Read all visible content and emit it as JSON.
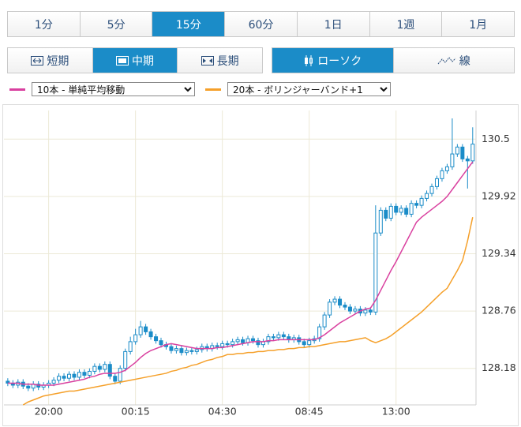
{
  "toolbar": {
    "timeframes": [
      {
        "label": "1分",
        "active": false
      },
      {
        "label": "5分",
        "active": false
      },
      {
        "label": "15分",
        "active": true
      },
      {
        "label": "60分",
        "active": false
      },
      {
        "label": "1日",
        "active": false
      },
      {
        "label": "1週",
        "active": false
      },
      {
        "label": "1月",
        "active": false
      }
    ],
    "ranges": [
      {
        "label": "短期",
        "active": false
      },
      {
        "label": "中期",
        "active": true
      },
      {
        "label": "長期",
        "active": false
      }
    ],
    "styles": [
      {
        "label": "ローソク",
        "active": true
      },
      {
        "label": "線",
        "active": false
      }
    ]
  },
  "chart_data": {
    "type": "candlestick",
    "up_color": "#ffffff",
    "down_color": "#1b8cc8",
    "edge_color": "#1b8cc8",
    "grid": true,
    "ylim": [
      127.81,
      130.79
    ],
    "yticks": [
      128.18,
      128.76,
      129.34,
      129.92,
      130.5
    ],
    "categories": [
      null,
      null,
      null,
      null,
      null,
      null,
      null,
      null,
      "20:00",
      null,
      null,
      null,
      null,
      null,
      null,
      null,
      null,
      null,
      null,
      null,
      null,
      null,
      null,
      null,
      null,
      "00:15",
      null,
      null,
      null,
      null,
      null,
      null,
      null,
      null,
      null,
      null,
      null,
      null,
      null,
      null,
      null,
      null,
      "04:30",
      null,
      null,
      null,
      null,
      null,
      null,
      null,
      null,
      null,
      null,
      null,
      null,
      null,
      null,
      null,
      null,
      "08:45",
      null,
      null,
      null,
      null,
      null,
      null,
      null,
      null,
      null,
      null,
      null,
      null,
      null,
      null,
      null,
      null,
      "13:00",
      null,
      null,
      null,
      null,
      null,
      null,
      null,
      null,
      null,
      null,
      null,
      null,
      null,
      null,
      null
    ],
    "candles": {
      "open": [
        128.05,
        128.03,
        128.01,
        128.04,
        128.0,
        127.98,
        128.02,
        127.99,
        128.01,
        128.03,
        128.06,
        128.1,
        128.08,
        128.12,
        128.09,
        128.14,
        128.11,
        128.15,
        128.2,
        128.17,
        128.22,
        128.1,
        128.05,
        128.18,
        128.35,
        128.45,
        128.52,
        128.6,
        128.55,
        128.5,
        128.46,
        128.42,
        128.4,
        128.36,
        128.38,
        128.34,
        128.36,
        128.35,
        128.37,
        128.4,
        128.38,
        128.41,
        128.4,
        128.43,
        128.42,
        128.45,
        128.47,
        128.44,
        128.48,
        128.46,
        128.42,
        128.45,
        128.5,
        128.49,
        128.52,
        128.5,
        128.47,
        128.49,
        128.45,
        128.42,
        128.46,
        128.48,
        128.6,
        128.72,
        128.85,
        128.88,
        128.82,
        128.8,
        128.76,
        128.78,
        128.74,
        128.77,
        128.75,
        129.55,
        129.78,
        129.7,
        129.82,
        129.76,
        129.8,
        129.74,
        129.85,
        129.83,
        129.9,
        129.95,
        130.02,
        130.1,
        130.18,
        130.22,
        130.35,
        130.42,
        130.3,
        130.28
      ],
      "high": [
        128.08,
        128.06,
        128.07,
        128.07,
        128.03,
        128.05,
        128.05,
        128.04,
        128.06,
        128.09,
        128.13,
        128.13,
        128.15,
        128.15,
        128.17,
        128.17,
        128.18,
        128.23,
        128.23,
        128.25,
        128.25,
        128.13,
        128.21,
        128.38,
        128.5,
        128.58,
        128.66,
        128.63,
        128.58,
        128.53,
        128.49,
        128.45,
        128.43,
        128.41,
        128.41,
        128.39,
        128.39,
        128.4,
        128.43,
        128.43,
        128.44,
        128.44,
        128.46,
        128.46,
        128.48,
        128.5,
        128.5,
        128.51,
        128.51,
        128.49,
        128.48,
        128.53,
        128.53,
        128.55,
        128.55,
        128.53,
        128.52,
        128.52,
        128.48,
        128.49,
        128.51,
        128.63,
        128.75,
        128.88,
        128.91,
        128.91,
        128.85,
        128.83,
        128.81,
        128.81,
        128.8,
        128.8,
        129.83,
        129.81,
        129.81,
        129.85,
        129.85,
        129.83,
        129.83,
        129.88,
        129.88,
        129.93,
        129.98,
        130.05,
        130.13,
        130.21,
        130.25,
        130.71,
        130.45,
        130.45,
        130.33,
        130.62
      ],
      "low": [
        128.0,
        127.98,
        127.98,
        127.97,
        127.95,
        127.95,
        127.96,
        127.96,
        127.98,
        128.0,
        128.03,
        128.05,
        128.05,
        128.06,
        128.06,
        128.08,
        128.08,
        128.12,
        128.14,
        128.14,
        128.07,
        128.02,
        128.02,
        128.15,
        128.32,
        128.42,
        128.49,
        128.52,
        128.47,
        128.43,
        128.39,
        128.37,
        128.33,
        128.33,
        128.31,
        128.31,
        128.32,
        128.32,
        128.34,
        128.35,
        128.35,
        128.37,
        128.37,
        128.39,
        128.39,
        128.42,
        128.41,
        128.41,
        128.43,
        128.39,
        128.39,
        128.42,
        128.46,
        128.46,
        128.47,
        128.44,
        128.44,
        128.42,
        128.39,
        128.39,
        128.43,
        128.45,
        128.57,
        128.69,
        128.82,
        128.79,
        128.77,
        128.73,
        128.73,
        128.71,
        128.71,
        128.72,
        128.72,
        129.52,
        129.67,
        129.67,
        129.73,
        129.73,
        129.71,
        129.71,
        129.8,
        129.8,
        129.87,
        129.92,
        129.99,
        130.07,
        130.15,
        130.19,
        130.32,
        130.27,
        130.0,
        130.25
      ],
      "close": [
        128.03,
        128.01,
        128.04,
        128.0,
        127.98,
        128.02,
        127.99,
        128.01,
        128.03,
        128.06,
        128.1,
        128.08,
        128.12,
        128.09,
        128.14,
        128.11,
        128.15,
        128.2,
        128.17,
        128.22,
        128.1,
        128.05,
        128.18,
        128.35,
        128.45,
        128.52,
        128.6,
        128.55,
        128.5,
        128.46,
        128.42,
        128.4,
        128.36,
        128.38,
        128.34,
        128.36,
        128.35,
        128.37,
        128.4,
        128.38,
        128.41,
        128.4,
        128.43,
        128.42,
        128.45,
        128.47,
        128.44,
        128.48,
        128.46,
        128.42,
        128.45,
        128.5,
        128.49,
        128.52,
        128.5,
        128.47,
        128.49,
        128.45,
        128.42,
        128.46,
        128.48,
        128.6,
        128.72,
        128.85,
        128.88,
        128.82,
        128.8,
        128.76,
        128.78,
        128.74,
        128.77,
        128.75,
        129.55,
        129.78,
        129.7,
        129.82,
        129.76,
        129.8,
        129.74,
        129.85,
        129.83,
        129.9,
        129.95,
        130.02,
        130.1,
        130.18,
        130.22,
        130.35,
        130.42,
        130.3,
        130.28,
        130.45
      ]
    },
    "series": [
      {
        "name": "10本 - 単純平均移動",
        "color": "#d9409f",
        "values": [
          128.03,
          128.03,
          128.03,
          128.02,
          128.02,
          128.02,
          128.01,
          128.01,
          128.01,
          128.01,
          128.02,
          128.03,
          128.04,
          128.05,
          128.06,
          128.07,
          128.09,
          128.1,
          128.12,
          128.13,
          128.13,
          128.13,
          128.14,
          128.16,
          128.2,
          128.24,
          128.29,
          128.33,
          128.36,
          128.38,
          128.4,
          128.42,
          128.43,
          128.42,
          128.41,
          128.4,
          128.39,
          128.38,
          128.38,
          128.38,
          128.38,
          128.39,
          128.39,
          128.4,
          128.41,
          128.42,
          128.43,
          128.44,
          128.45,
          128.45,
          128.45,
          128.46,
          128.46,
          128.47,
          128.47,
          128.47,
          128.47,
          128.47,
          128.47,
          128.47,
          128.47,
          128.49,
          128.52,
          128.56,
          128.6,
          128.64,
          128.67,
          128.7,
          128.73,
          128.76,
          128.78,
          128.79,
          128.87,
          128.97,
          129.07,
          129.17,
          129.26,
          129.36,
          129.46,
          129.56,
          129.66,
          129.71,
          129.75,
          129.79,
          129.83,
          129.87,
          129.92,
          129.99,
          130.06,
          130.13,
          130.2,
          130.27
        ]
      },
      {
        "name": "20本 - ボリンジャーバンド+1",
        "color": "#f5a02a",
        "values": [
          null,
          null,
          null,
          127.81,
          127.84,
          127.86,
          127.88,
          127.9,
          127.91,
          127.92,
          127.93,
          127.94,
          127.95,
          127.95,
          127.96,
          127.97,
          127.98,
          127.99,
          128.0,
          128.01,
          128.02,
          128.03,
          128.04,
          128.05,
          128.06,
          128.07,
          128.08,
          128.09,
          128.1,
          128.11,
          128.12,
          128.13,
          128.15,
          128.16,
          128.18,
          128.19,
          128.21,
          128.22,
          128.24,
          128.26,
          128.27,
          128.29,
          128.3,
          128.32,
          128.32,
          128.33,
          128.33,
          128.34,
          128.34,
          128.35,
          128.35,
          128.36,
          128.36,
          128.37,
          128.37,
          128.38,
          128.38,
          128.39,
          128.39,
          128.4,
          128.4,
          128.41,
          128.42,
          128.43,
          128.44,
          128.45,
          128.45,
          128.46,
          128.47,
          128.48,
          128.49,
          128.46,
          128.44,
          128.46,
          128.48,
          128.51,
          128.55,
          128.59,
          128.63,
          128.67,
          128.71,
          128.75,
          128.8,
          128.85,
          128.9,
          128.95,
          128.99,
          129.08,
          129.17,
          129.27,
          129.47,
          129.71
        ]
      }
    ]
  }
}
